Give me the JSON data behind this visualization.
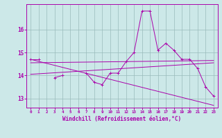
{
  "x": [
    0,
    1,
    2,
    3,
    4,
    5,
    6,
    7,
    8,
    9,
    10,
    11,
    12,
    13,
    14,
    15,
    16,
    17,
    18,
    19,
    20,
    21,
    22,
    23
  ],
  "line1": [
    14.7,
    14.7,
    null,
    13.9,
    14.0,
    null,
    null,
    14.1,
    13.7,
    13.6,
    14.1,
    14.1,
    14.6,
    15.0,
    16.8,
    16.8,
    15.1,
    15.4,
    15.1,
    14.7,
    14.7,
    14.3,
    13.5,
    13.1
  ],
  "line2_x": [
    0,
    23
  ],
  "line2_y": [
    14.7,
    12.7
  ],
  "line3_x": [
    0,
    23
  ],
  "line3_y": [
    14.05,
    14.55
  ],
  "line4_x": [
    0,
    23
  ],
  "line4_y": [
    14.55,
    14.65
  ],
  "bg_color": "#cce8e8",
  "line_color": "#aa00aa",
  "grid_color": "#99bbbb",
  "xlabel": "Windchill (Refroidissement éolien,°C)",
  "xlim": [
    -0.5,
    23.5
  ],
  "ylim": [
    12.6,
    17.1
  ],
  "yticks": [
    13,
    14,
    15,
    16
  ],
  "xticks": [
    0,
    1,
    2,
    3,
    4,
    5,
    6,
    7,
    8,
    9,
    10,
    11,
    12,
    13,
    14,
    15,
    16,
    17,
    18,
    19,
    20,
    21,
    22,
    23
  ]
}
